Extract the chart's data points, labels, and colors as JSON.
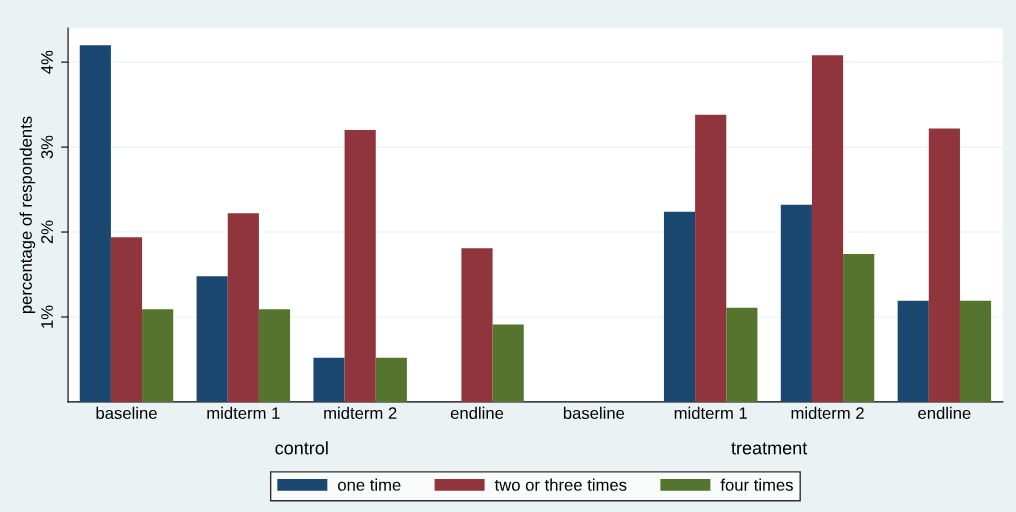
{
  "chart_data": {
    "type": "bar",
    "ylabel": "percentage of respondents",
    "categories": [
      "baseline",
      "midterm 1",
      "midterm 2",
      "endline",
      "baseline",
      "midterm 1",
      "midterm 2",
      "endline"
    ],
    "series": [
      {
        "name": "one time",
        "color": "#1a476f",
        "values": [
          4.2,
          1.48,
          0.52,
          null,
          null,
          2.24,
          2.32,
          1.19
        ]
      },
      {
        "name": "two or three times",
        "color": "#90353b",
        "values": [
          1.94,
          2.22,
          3.2,
          1.81,
          null,
          3.38,
          4.08,
          3.22
        ]
      },
      {
        "name": "four times",
        "color": "#55752f",
        "values": [
          1.09,
          1.09,
          0.52,
          0.91,
          null,
          1.11,
          1.74,
          1.19
        ]
      }
    ],
    "annotations": [
      "control",
      "treatment"
    ],
    "ylim": [
      0,
      4.4
    ],
    "yticks": [
      {
        "value": 1,
        "label": "1%"
      },
      {
        "value": 2,
        "label": "2%"
      },
      {
        "value": 3,
        "label": "3%"
      },
      {
        "value": 4,
        "label": "4%"
      }
    ],
    "grid": "y",
    "legend": "bottom"
  }
}
